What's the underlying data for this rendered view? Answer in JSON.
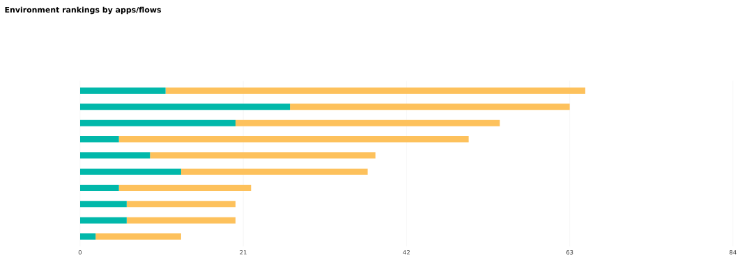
{
  "chart_data": {
    "type": "bar",
    "orientation": "horizontal",
    "stacked": true,
    "title": "Environment rankings by apps/flows",
    "categories": [
      null,
      null,
      null,
      null,
      null,
      null,
      null,
      null,
      null,
      null
    ],
    "series": [
      {
        "color": "#01b8aa",
        "values": [
          11,
          27,
          20,
          5,
          9,
          13,
          5,
          6,
          6,
          2
        ]
      },
      {
        "color": "#fdc15c",
        "values": [
          54,
          36,
          34,
          45,
          29,
          24,
          17,
          14,
          14,
          11
        ]
      }
    ],
    "xlim": [
      0,
      84
    ],
    "xticks": [
      0,
      21,
      42,
      63,
      84
    ],
    "grid": "x",
    "tick_labels": "x"
  }
}
